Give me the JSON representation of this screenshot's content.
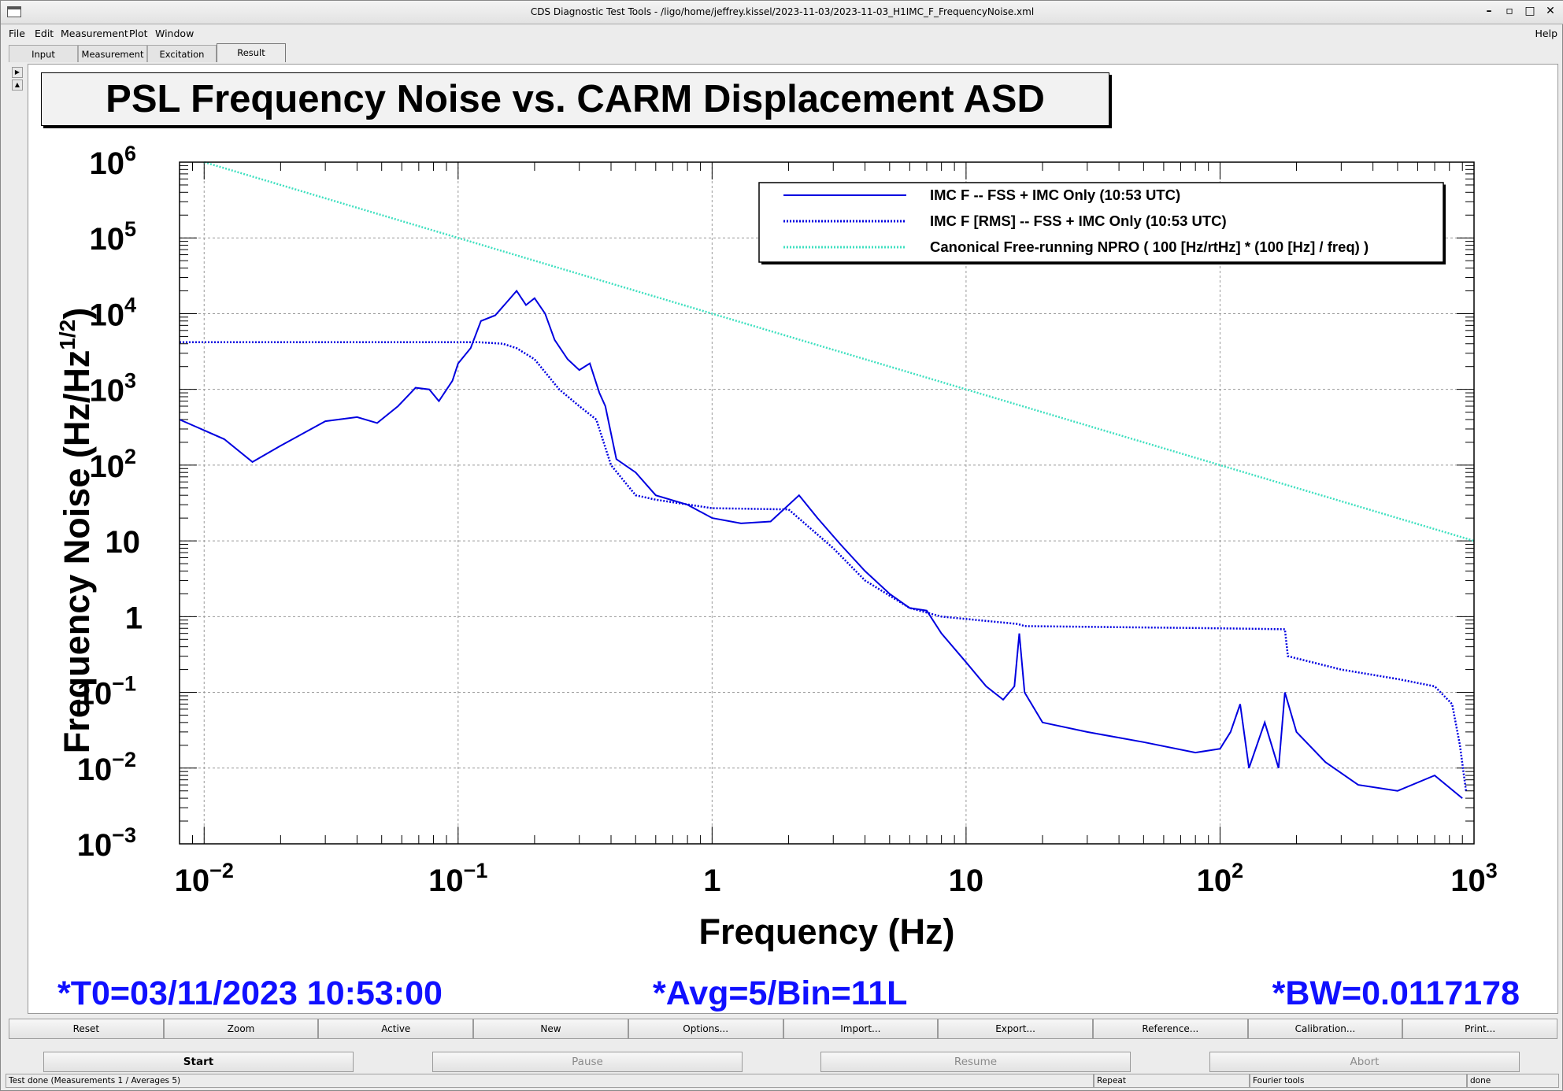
{
  "window": {
    "title": "CDS Diagnostic Test Tools - /ligo/home/jeffrey.kissel/2023-11-03/2023-11-03_H1IMC_F_FrequencyNoise.xml",
    "controls": [
      "–",
      "▫",
      "□",
      "✕"
    ]
  },
  "menu": {
    "items": [
      "File",
      "Edit",
      "Measurement",
      "Plot",
      "Window"
    ],
    "help": "Help"
  },
  "tabs": [
    "Input",
    "Measurement",
    "Excitation",
    "Result"
  ],
  "active_tab": "Result",
  "plot": {
    "title": "PSL Frequency Noise vs. CARM Displacement ASD"
  },
  "chart_data": {
    "type": "line",
    "title": "PSL Frequency Noise vs. CARM Displacement ASD",
    "xlabel": "Frequency (Hz)",
    "ylabel": "Frequency Noise (Hz/Hz^(1/2))",
    "x_scale": "log",
    "y_scale": "log",
    "xlim": [
      0.008,
      1000
    ],
    "ylim": [
      0.001,
      1000000
    ],
    "x_ticks": [
      {
        "base": "10",
        "exp": "−2"
      },
      {
        "base": "10",
        "exp": "−1"
      },
      {
        "base": "1",
        "exp": ""
      },
      {
        "base": "10",
        "exp": ""
      },
      {
        "base": "10",
        "exp": "2"
      },
      {
        "base": "10",
        "exp": "3"
      }
    ],
    "y_ticks": [
      {
        "base": "10",
        "exp": "6"
      },
      {
        "base": "10",
        "exp": "5"
      },
      {
        "base": "10",
        "exp": "4"
      },
      {
        "base": "10",
        "exp": "3"
      },
      {
        "base": "10",
        "exp": "2"
      },
      {
        "base": "10",
        "exp": ""
      },
      {
        "base": "1",
        "exp": ""
      },
      {
        "base": "10",
        "exp": "−1"
      },
      {
        "base": "10",
        "exp": "−2"
      },
      {
        "base": "10",
        "exp": "−3"
      }
    ],
    "grid": true,
    "legend_position": "top-right",
    "series": [
      {
        "name": "IMC F -- FSS + IMC Only (10:53 UTC)",
        "color": "#0000e0",
        "style": "solid",
        "points": [
          [
            0.008,
            400
          ],
          [
            0.012,
            220
          ],
          [
            0.0155,
            110
          ],
          [
            0.02,
            180
          ],
          [
            0.03,
            380
          ],
          [
            0.04,
            430
          ],
          [
            0.048,
            360
          ],
          [
            0.058,
            600
          ],
          [
            0.068,
            1050
          ],
          [
            0.077,
            1000
          ],
          [
            0.084,
            700
          ],
          [
            0.095,
            1300
          ],
          [
            0.1,
            2200
          ],
          [
            0.112,
            3500
          ],
          [
            0.123,
            8000
          ],
          [
            0.14,
            9500
          ],
          [
            0.155,
            14000
          ],
          [
            0.17,
            20000
          ],
          [
            0.185,
            13000
          ],
          [
            0.2,
            16000
          ],
          [
            0.22,
            10000
          ],
          [
            0.24,
            4500
          ],
          [
            0.27,
            2500
          ],
          [
            0.3,
            1800
          ],
          [
            0.33,
            2200
          ],
          [
            0.36,
            900
          ],
          [
            0.38,
            600
          ],
          [
            0.42,
            120
          ],
          [
            0.5,
            80
          ],
          [
            0.6,
            40
          ],
          [
            0.8,
            30
          ],
          [
            1.0,
            20
          ],
          [
            1.3,
            17
          ],
          [
            1.7,
            18
          ],
          [
            2.2,
            40
          ],
          [
            2.6,
            20
          ],
          [
            3.2,
            9
          ],
          [
            4.0,
            4
          ],
          [
            5.0,
            2
          ],
          [
            6.0,
            1.3
          ],
          [
            7.0,
            1.2
          ],
          [
            8.0,
            0.6
          ],
          [
            10.0,
            0.25
          ],
          [
            12.0,
            0.12
          ],
          [
            14.0,
            0.08
          ],
          [
            15.5,
            0.12
          ],
          [
            16.2,
            0.6
          ],
          [
            17.0,
            0.1
          ],
          [
            20.0,
            0.04
          ],
          [
            30.0,
            0.03
          ],
          [
            50.0,
            0.022
          ],
          [
            80.0,
            0.016
          ],
          [
            100.0,
            0.018
          ],
          [
            110.0,
            0.03
          ],
          [
            120.0,
            0.07
          ],
          [
            130.0,
            0.01
          ],
          [
            150.0,
            0.04
          ],
          [
            170.0,
            0.01
          ],
          [
            180.0,
            0.1
          ],
          [
            200.0,
            0.03
          ],
          [
            260.0,
            0.012
          ],
          [
            350.0,
            0.006
          ],
          [
            500.0,
            0.005
          ],
          [
            700.0,
            0.008
          ],
          [
            900.0,
            0.004
          ]
        ]
      },
      {
        "name": "IMC F [RMS] -- FSS + IMC Only (10:53 UTC)",
        "color": "#0000e0",
        "style": "dotted",
        "points": [
          [
            0.008,
            4200
          ],
          [
            0.12,
            4200
          ],
          [
            0.15,
            4000
          ],
          [
            0.17,
            3500
          ],
          [
            0.2,
            2500
          ],
          [
            0.25,
            1000
          ],
          [
            0.3,
            600
          ],
          [
            0.35,
            400
          ],
          [
            0.4,
            100
          ],
          [
            0.5,
            40
          ],
          [
            0.6,
            35
          ],
          [
            1.0,
            27
          ],
          [
            2.0,
            26
          ],
          [
            3.0,
            8
          ],
          [
            4.0,
            3
          ],
          [
            6.0,
            1.3
          ],
          [
            8.0,
            1.0
          ],
          [
            16.0,
            0.8
          ],
          [
            17.0,
            0.75
          ],
          [
            100.0,
            0.7
          ],
          [
            180.0,
            0.68
          ],
          [
            185.0,
            0.3
          ],
          [
            300.0,
            0.2
          ],
          [
            500.0,
            0.15
          ],
          [
            700.0,
            0.12
          ],
          [
            820.0,
            0.07
          ],
          [
            880.0,
            0.02
          ],
          [
            930.0,
            0.005
          ]
        ]
      },
      {
        "name": "Canonical Free-running NPRO ( 100 [Hz/rtHz] * (100 [Hz] / freq) )",
        "color": "#40e0c0",
        "style": "dotted",
        "points": [
          [
            0.01,
            1000000
          ],
          [
            1000.0,
            10
          ]
        ]
      }
    ]
  },
  "footer": {
    "t0": "*T0=03/11/2023 10:53:00",
    "avg": "*Avg=5/Bin=11L",
    "bw": "*BW=0.0117178"
  },
  "buttons_row1": [
    "Reset",
    "Zoom",
    "Active",
    "New",
    "Options...",
    "Import...",
    "Export...",
    "Reference...",
    "Calibration...",
    "Print..."
  ],
  "buttons_row2": {
    "start": "Start",
    "pause": "Pause",
    "resume": "Resume",
    "abort": "Abort"
  },
  "status": {
    "message": "Test done (Measurements 1 / Averages 5)",
    "mode": "Repeat",
    "tool": "Fourier tools",
    "state": "done"
  }
}
